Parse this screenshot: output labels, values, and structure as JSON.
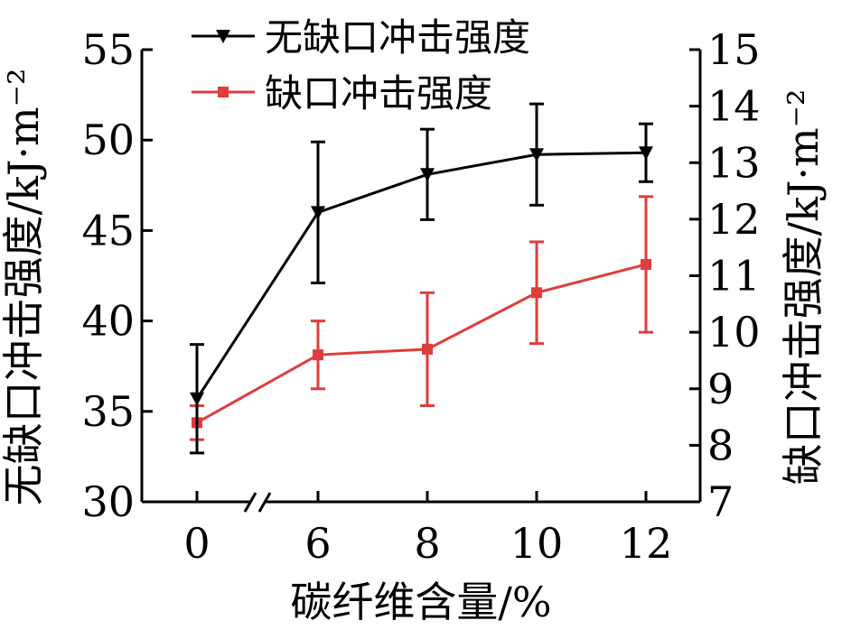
{
  "chart_data": {
    "type": "line",
    "x_categories": [
      "0",
      "6",
      "8",
      "10",
      "12"
    ],
    "x_axis_break": "//",
    "xlabel": "碳纤维含量/%",
    "ylabel_left": "无缺口冲击强度/kJ·m⁻²",
    "ylabel_right": "缺口冲击强度/kJ·m⁻²",
    "ylim_left": [
      30,
      55
    ],
    "ylim_right": [
      7,
      15
    ],
    "yticks_left": [
      "30",
      "35",
      "40",
      "45",
      "50",
      "55"
    ],
    "yticks_right": [
      "7",
      "8",
      "9",
      "10",
      "11",
      "12",
      "13",
      "14",
      "15"
    ],
    "grid": false,
    "legend_position": "top-left",
    "series": [
      {
        "name": "无缺口冲击强度",
        "axis": "left",
        "color": "#000000",
        "marker": "triangle-down",
        "values": [
          35.7,
          46.0,
          48.1,
          49.2,
          49.3
        ],
        "error": [
          3.0,
          3.9,
          2.5,
          2.8,
          1.6
        ]
      },
      {
        "name": "缺口冲击强度",
        "axis": "right",
        "color": "#e03c3c",
        "marker": "square",
        "values": [
          8.4,
          9.6,
          9.7,
          10.7,
          11.2
        ],
        "error": [
          0.3,
          0.6,
          1.0,
          0.9,
          1.2
        ]
      }
    ]
  }
}
